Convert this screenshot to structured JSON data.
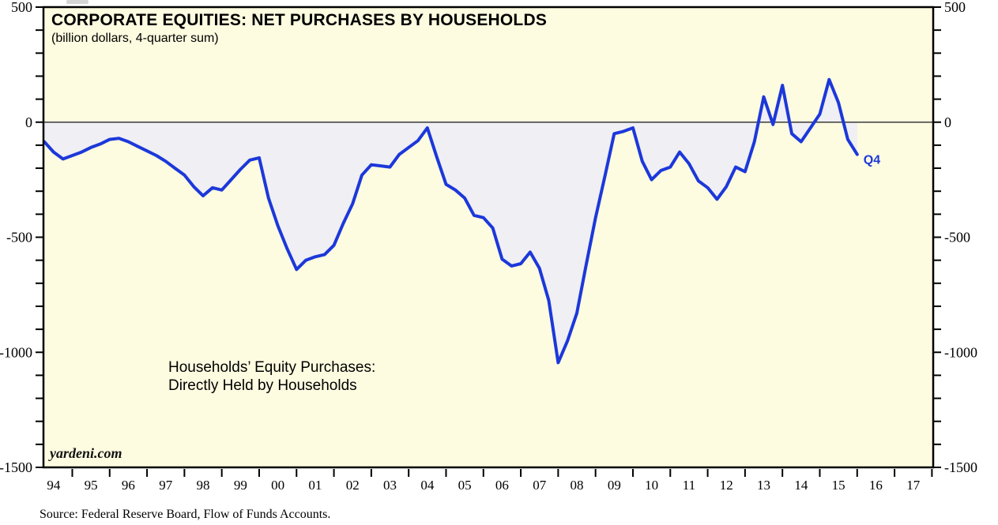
{
  "header": {
    "title": "CORPORATE EQUITIES: NET PURCHASES BY HOUSEHOLDS",
    "subtitle": "(billion dollars, 4-quarter sum)"
  },
  "annotation": {
    "line1": "Households’ Equity Purchases:",
    "line2": "Directly Held by Households"
  },
  "watermark": "yardeni.com",
  "last_point_label": "Q4",
  "source": "Source: Federal Reserve Board, Flow of Funds Accounts.",
  "colors": {
    "plot_bg": "#fdfbe0",
    "area_fill": "#efeff4",
    "line": "#1c38da",
    "frame": "#000000",
    "zero_line": "#3a3a3a",
    "tick": "#000000",
    "q4_label": "#1c38da"
  },
  "chart_data": {
    "type": "area",
    "title": "Corporate Equities: Net Purchases by Households (billion dollars, 4-quarter sum)",
    "series_name": "Households' Equity Purchases: Directly Held by Households",
    "frequency": "quarterly",
    "start_year": 1994,
    "start_quarter": 1,
    "end_year": 2015,
    "end_quarter": 4,
    "values": [
      -85,
      -130,
      -160,
      -145,
      -130,
      -110,
      -95,
      -75,
      -70,
      -85,
      -105,
      -125,
      -145,
      -170,
      -200,
      -230,
      -280,
      -320,
      -285,
      -295,
      -250,
      -205,
      -165,
      -155,
      -330,
      -450,
      -550,
      -640,
      -600,
      -585,
      -575,
      -535,
      -440,
      -355,
      -230,
      -185,
      -190,
      -195,
      -140,
      -110,
      -80,
      -25,
      -150,
      -270,
      -295,
      -330,
      -405,
      -415,
      -460,
      -595,
      -625,
      -615,
      -565,
      -635,
      -775,
      -1045,
      -950,
      -830,
      -620,
      -415,
      -235,
      -50,
      -40,
      -25,
      -170,
      -250,
      -210,
      -195,
      -130,
      -180,
      -255,
      -285,
      -335,
      -280,
      -195,
      -215,
      -85,
      110,
      -10,
      160,
      -50,
      -85,
      -25,
      35,
      185,
      85,
      -75,
      -140
    ],
    "ylim": [
      -1500,
      500
    ],
    "y_major_ticks": [
      500,
      0,
      -500,
      -1000,
      -1500
    ],
    "y_minor_step": 100,
    "x_tick_years": [
      "94",
      "95",
      "96",
      "97",
      "98",
      "99",
      "00",
      "01",
      "02",
      "03",
      "04",
      "05",
      "06",
      "07",
      "08",
      "09",
      "10",
      "11",
      "12",
      "13",
      "14",
      "15",
      "16",
      "17"
    ],
    "x_axis_end_year": 2018,
    "grid": "none",
    "legend": "none",
    "zero_line": true
  }
}
